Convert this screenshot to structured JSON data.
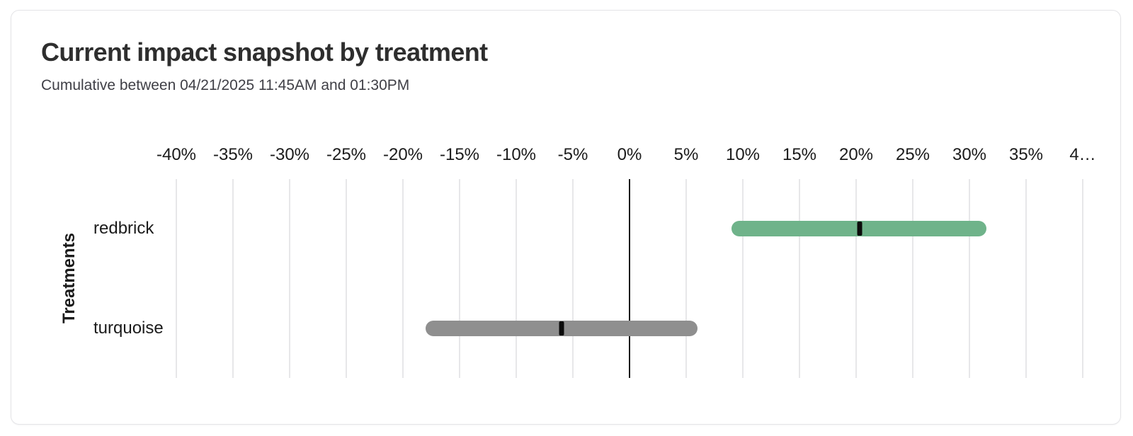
{
  "header": {
    "title": "Current impact snapshot by treatment",
    "subtitle": "Cumulative between 04/21/2025 11:45AM and 01:30PM"
  },
  "chart_data": {
    "type": "bar",
    "variant": "horizontal-range-bars-with-point-estimate",
    "title": "Current impact snapshot by treatment",
    "subtitle": "Cumulative between 04/21/2025 11:45AM and 01:30PM",
    "xlabel": "",
    "ylabel": "Treatments",
    "x_unit": "%",
    "xlim": [
      -40,
      40
    ],
    "x_ticks": [
      -40,
      -35,
      -30,
      -25,
      -20,
      -15,
      -10,
      -5,
      0,
      5,
      10,
      15,
      20,
      25,
      30,
      35,
      40
    ],
    "x_tick_labels": [
      "-40%",
      "-35%",
      "-30%",
      "-25%",
      "-20%",
      "-15%",
      "-10%",
      "-5%",
      "0%",
      "5%",
      "10%",
      "15%",
      "20%",
      "25%",
      "30%",
      "35%",
      "4…"
    ],
    "grid": true,
    "zero_line": true,
    "legend": "none",
    "categories": [
      "redbrick",
      "turquoise"
    ],
    "series": [
      {
        "name": "redbrick",
        "ci_low": 9,
        "point_estimate": 20.3,
        "ci_high": 31.5,
        "bar_color": "#6fb38a"
      },
      {
        "name": "turquoise",
        "ci_low": -18,
        "point_estimate": -6,
        "ci_high": 6,
        "bar_color": "#8f8f8f"
      }
    ],
    "marker_color": "#0b0b0b"
  },
  "colors": {
    "card_background": "#ffffff",
    "card_border": "#e4e4e7",
    "gridline": "#e7e7e9",
    "zero_line": "#1b1b1b",
    "title_text": "#2e2e2e",
    "subtitle_text": "#3f3f46",
    "axis_text": "#1b1b1b",
    "positive_bar": "#6fb38a",
    "neutral_bar": "#8f8f8f"
  }
}
